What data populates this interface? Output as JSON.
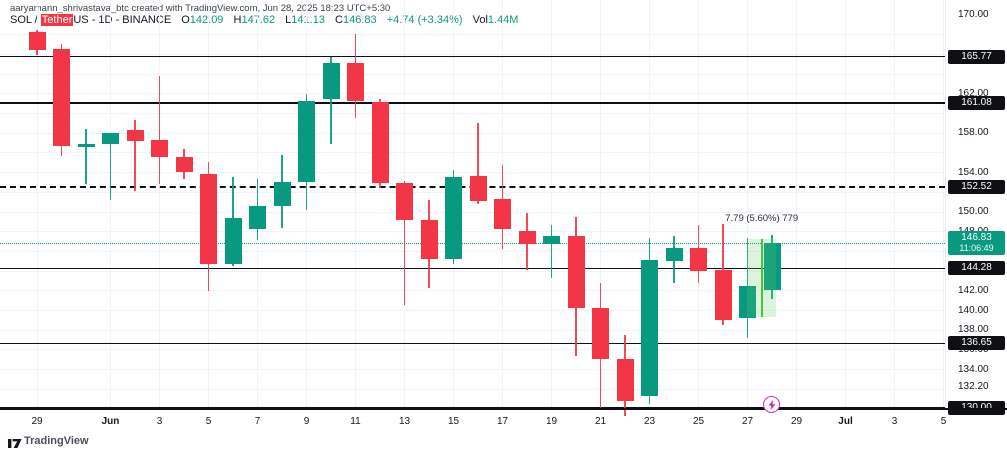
{
  "watermark": "aaryamann_shrivastava_btc created with TradingView.com, Jun 28, 2025 18:23 UTC+5:30",
  "legend": {
    "symbol_pre": "SOL / ",
    "symbol_highlight": "Tether",
    "symbol_post": "US - 1D - BINANCE",
    "o_label": "O",
    "o_value": "142.09",
    "h_label": "H",
    "h_value": "147.62",
    "l_label": "L",
    "l_value": "141.13",
    "c_label": "C",
    "c_value": "146.83",
    "change": "+4.74 (+3.34%)",
    "vol_label": "Vol",
    "vol_value": "1.44M"
  },
  "price_axis": {
    "ticks": [
      {
        "label": "170.00",
        "price": 170.0
      },
      {
        "label": "162.00",
        "price": 162.0
      },
      {
        "label": "158.00",
        "price": 158.0
      },
      {
        "label": "154.00",
        "price": 154.0
      },
      {
        "label": "152.00",
        "price": 152.0
      },
      {
        "label": "150.00",
        "price": 150.0
      },
      {
        "label": "148.00",
        "price": 148.0
      },
      {
        "label": "142.00",
        "price": 142.0
      },
      {
        "label": "140.00",
        "price": 140.0
      },
      {
        "label": "138.00",
        "price": 138.0
      },
      {
        "label": "136.00",
        "price": 136.0
      },
      {
        "label": "134.00",
        "price": 134.0
      },
      {
        "label": "132.20",
        "price": 132.2
      }
    ],
    "current": {
      "label": "146.83",
      "countdown": "11:06:49",
      "price": 146.83
    }
  },
  "time_axis": {
    "ticks": [
      {
        "label": "29",
        "i": 0,
        "bold": false
      },
      {
        "label": "Jun",
        "i": 3,
        "bold": true
      },
      {
        "label": "3",
        "i": 5,
        "bold": false
      },
      {
        "label": "5",
        "i": 7,
        "bold": false
      },
      {
        "label": "7",
        "i": 9,
        "bold": false
      },
      {
        "label": "9",
        "i": 11,
        "bold": false
      },
      {
        "label": "11",
        "i": 13,
        "bold": false
      },
      {
        "label": "13",
        "i": 15,
        "bold": false
      },
      {
        "label": "15",
        "i": 17,
        "bold": false
      },
      {
        "label": "17",
        "i": 19,
        "bold": false
      },
      {
        "label": "19",
        "i": 21,
        "bold": false
      },
      {
        "label": "21",
        "i": 23,
        "bold": false
      },
      {
        "label": "23",
        "i": 25,
        "bold": false
      },
      {
        "label": "25",
        "i": 27,
        "bold": false
      },
      {
        "label": "27",
        "i": 29,
        "bold": false
      },
      {
        "label": "29",
        "i": 31,
        "bold": false
      },
      {
        "label": "Jul",
        "i": 33,
        "bold": true
      },
      {
        "label": "3",
        "i": 35,
        "bold": false
      },
      {
        "label": "5",
        "i": 37,
        "bold": false
      }
    ]
  },
  "chart_data": {
    "type": "candlestick",
    "title": "SOL / TetherUS - 1D - BINANCE",
    "symbol": "SOLUSDT",
    "interval": "1D",
    "exchange": "BINANCE",
    "up_color": "#089981",
    "down_color": "#f23645",
    "grid_color": "#f0f3fa",
    "price_range": [
      129.0,
      170.5
    ],
    "current_price": 146.83,
    "volume": "1.44M",
    "candles": [
      {
        "date": "May 29",
        "o": 168.3,
        "h": 168.5,
        "l": 165.9,
        "c": 166.4
      },
      {
        "date": "May 30",
        "o": 166.5,
        "h": 167.1,
        "l": 155.7,
        "c": 156.7
      },
      {
        "date": "May 31",
        "o": 156.6,
        "h": 158.4,
        "l": 152.8,
        "c": 156.9
      },
      {
        "date": "Jun 1",
        "o": 156.9,
        "h": 158.0,
        "l": 151.2,
        "c": 158.0
      },
      {
        "date": "Jun 2",
        "o": 158.3,
        "h": 159.3,
        "l": 152.1,
        "c": 157.2
      },
      {
        "date": "Jun 3",
        "o": 157.3,
        "h": 163.8,
        "l": 152.8,
        "c": 155.6
      },
      {
        "date": "Jun 4",
        "o": 155.6,
        "h": 156.4,
        "l": 153.4,
        "c": 154.1
      },
      {
        "date": "Jun 5",
        "o": 153.9,
        "h": 155.1,
        "l": 142.0,
        "c": 144.7
      },
      {
        "date": "Jun 6",
        "o": 144.7,
        "h": 153.6,
        "l": 144.5,
        "c": 149.4
      },
      {
        "date": "Jun 7",
        "o": 148.3,
        "h": 153.4,
        "l": 147.2,
        "c": 150.6
      },
      {
        "date": "Jun 8",
        "o": 150.6,
        "h": 155.8,
        "l": 148.4,
        "c": 153.0
      },
      {
        "date": "Jun 9",
        "o": 153.0,
        "h": 162.0,
        "l": 150.2,
        "c": 161.3
      },
      {
        "date": "Jun 10",
        "o": 161.5,
        "h": 165.7,
        "l": 156.9,
        "c": 165.1
      },
      {
        "date": "Jun 11",
        "o": 165.1,
        "h": 168.1,
        "l": 159.5,
        "c": 161.3
      },
      {
        "date": "Jun 12",
        "o": 161.2,
        "h": 161.5,
        "l": 152.4,
        "c": 152.9
      },
      {
        "date": "Jun 13",
        "o": 152.9,
        "h": 153.1,
        "l": 140.6,
        "c": 149.2
      },
      {
        "date": "Jun 14",
        "o": 149.2,
        "h": 151.2,
        "l": 142.3,
        "c": 145.2
      },
      {
        "date": "Jun 15",
        "o": 145.2,
        "h": 154.3,
        "l": 144.7,
        "c": 153.6
      },
      {
        "date": "Jun 16",
        "o": 153.7,
        "h": 159.0,
        "l": 150.8,
        "c": 151.1
      },
      {
        "date": "Jun 17",
        "o": 151.3,
        "h": 154.8,
        "l": 146.2,
        "c": 148.3
      },
      {
        "date": "Jun 18",
        "o": 148.1,
        "h": 149.9,
        "l": 144.1,
        "c": 146.7
      },
      {
        "date": "Jun 19",
        "o": 146.7,
        "h": 148.7,
        "l": 143.3,
        "c": 147.6
      },
      {
        "date": "Jun 20",
        "o": 147.6,
        "h": 149.5,
        "l": 135.4,
        "c": 140.3
      },
      {
        "date": "Jun 21",
        "o": 140.3,
        "h": 142.8,
        "l": 130.0,
        "c": 135.1
      },
      {
        "date": "Jun 22",
        "o": 135.1,
        "h": 137.5,
        "l": 129.3,
        "c": 130.8
      },
      {
        "date": "Jun 23",
        "o": 131.3,
        "h": 147.4,
        "l": 130.5,
        "c": 145.1
      },
      {
        "date": "Jun 24",
        "o": 145.0,
        "h": 147.6,
        "l": 142.8,
        "c": 146.3
      },
      {
        "date": "Jun 25",
        "o": 146.3,
        "h": 148.7,
        "l": 142.8,
        "c": 144.0
      },
      {
        "date": "Jun 26",
        "o": 144.1,
        "h": 148.8,
        "l": 138.5,
        "c": 139.0
      },
      {
        "date": "Jun 27",
        "o": 139.2,
        "h": 147.4,
        "l": 137.2,
        "c": 142.5
      },
      {
        "date": "Jun 28",
        "o": 142.09,
        "h": 147.62,
        "l": 141.13,
        "c": 146.83
      }
    ],
    "levels": [
      {
        "label": "165.77",
        "price": 165.77,
        "style": "solid"
      },
      {
        "label": "161.08",
        "price": 161.08,
        "style": "solid"
      },
      {
        "label": "152.52",
        "price": 152.52,
        "style": "dashed"
      },
      {
        "label": "144.28",
        "price": 144.28,
        "style": "solid"
      },
      {
        "label": "136.65",
        "price": 136.65,
        "style": "solid"
      },
      {
        "label": "130.00",
        "price": 130.0,
        "style": "solid"
      }
    ],
    "range_tool": {
      "label": "7.79 (5.60%) 779",
      "price_top": 147.3,
      "price_bottom": 139.3,
      "i_left": 28.98,
      "i_right": 30.18,
      "fill_color": "rgba(94,207,94,0.22)",
      "line_color": "#46c24b"
    },
    "event_marker": {
      "name": "lightning-event",
      "i": 30,
      "color": "#c52fc5"
    }
  },
  "footer": {
    "brand": "TradingView"
  },
  "colors": {
    "up": "#089981",
    "down": "#f23645",
    "line": "#0d0f14",
    "grid": "#f0f3fa",
    "badge_bg": "#0d0f14",
    "current_badge_bg": "#089981",
    "highlight": "#f23645"
  }
}
